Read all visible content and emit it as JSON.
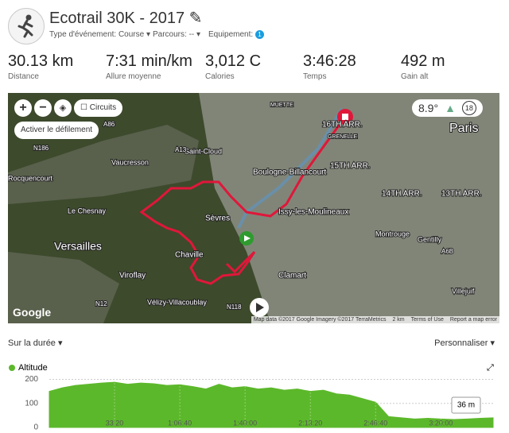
{
  "header": {
    "title": "Ecotrail 30K - 2017",
    "event_type": "Type d'événement: Course",
    "course": "Parcours: --",
    "equipment": "Equipement:",
    "equipment_count": "1"
  },
  "stats": [
    {
      "value": "30.13 km",
      "label": "Distance"
    },
    {
      "value": "7:31 min/km",
      "label": "Allure moyenne"
    },
    {
      "value": "3,012 C",
      "label": "Calories"
    },
    {
      "value": "3:46:28",
      "label": "Temps"
    },
    {
      "value": "492 m",
      "label": "Gain alt"
    }
  ],
  "map": {
    "circuits": "Circuits",
    "scroll": "Activer le défilement",
    "temperature": "8.9°",
    "count": "18",
    "logo": "Google",
    "attribution": "Map data ©2017 Google Imagery ©2017 TerraMetrics",
    "scale": "2 km",
    "terms": "Terms of Use",
    "report": "Report a map error",
    "labels": [
      "Paris",
      "16TH ARR.",
      "15TH ARR.",
      "14TH ARR.",
      "13TH ARR.",
      "GRENELLE",
      "MUETTE",
      "Saint-Cloud",
      "Boulogne-Billancourt",
      "Vaucresson",
      "Rocquencourt",
      "Le Chesnay",
      "Versailles",
      "Sèvres",
      "Chaville",
      "Viroflay",
      "Vélizy-Villacoublay",
      "Clamart",
      "Issy-les-Moulineaux",
      "Montrouge",
      "Gentilly",
      "Villejuif",
      "A86",
      "A13",
      "N118",
      "N12",
      "A6B",
      "N186"
    ]
  },
  "controls": {
    "duration": "Sur la durée",
    "customize": "Personnaliser"
  },
  "chart_data": {
    "type": "area",
    "tooltip": "36 m",
    "x": [
      0,
      400,
      800,
      1200,
      1600,
      2000,
      2400,
      2800,
      3200,
      3600,
      4000,
      4400,
      4800,
      5200,
      5600,
      6000,
      6400,
      6800,
      7200,
      7600,
      8000,
      8400,
      8800,
      9200,
      9600,
      10000,
      10400,
      10800,
      11200,
      11600,
      12000,
      12400,
      12800,
      13200,
      13600
    ],
    "series": [
      {
        "name": "Altitude",
        "color": "#5cb82b",
        "values": [
          150,
          165,
          175,
          180,
          185,
          188,
          180,
          185,
          182,
          175,
          178,
          170,
          160,
          180,
          165,
          170,
          160,
          165,
          155,
          160,
          150,
          155,
          140,
          135,
          120,
          105,
          45,
          40,
          35,
          38,
          35,
          33,
          35,
          38,
          40
        ]
      }
    ],
    "xlim": [
      0,
      13600
    ],
    "ylim": [
      0,
      225
    ],
    "yticks": [
      0,
      100,
      200
    ],
    "xticks": [
      {
        "value": 2000,
        "label": "33:20"
      },
      {
        "value": 4000,
        "label": "1:06:40"
      },
      {
        "value": 6000,
        "label": "1:40:00"
      },
      {
        "value": 8000,
        "label": "2:13:20"
      },
      {
        "value": 10000,
        "label": "2:46:40"
      },
      {
        "value": 12000,
        "label": "3:20:00"
      }
    ],
    "grid": true
  }
}
